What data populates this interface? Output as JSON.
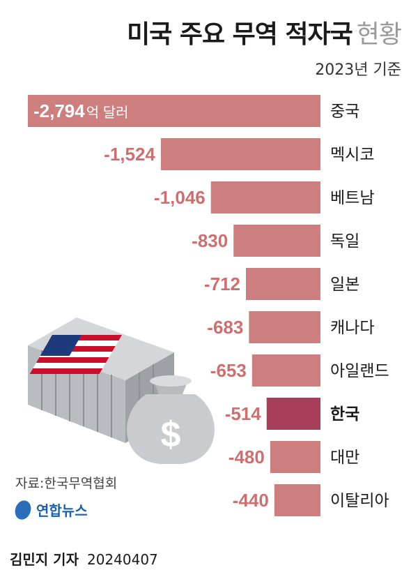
{
  "title": "미국 주요 무역 적자국",
  "title_light": "현황",
  "subtitle": "2023년 기준",
  "source": "자료:한국무역협회",
  "logo_text": "연합뉴스",
  "byline_name": "김민지 기자",
  "byline_date": "20240407",
  "colors": {
    "bar": "#cd7f7f",
    "highlight": "#a73e5c",
    "label": "#cd6f6f"
  },
  "chart_data": {
    "type": "bar",
    "orientation": "horizontal",
    "unit_label": "억 달러",
    "categories": [
      "중국",
      "멕시코",
      "베트남",
      "독일",
      "일본",
      "캐나다",
      "아일랜드",
      "한국",
      "대만",
      "이탈리아"
    ],
    "values": [
      -2794,
      -1524,
      -1046,
      -830,
      -712,
      -683,
      -653,
      -514,
      -480,
      -440
    ],
    "value_labels": [
      "-2,794",
      "-1,524",
      "-1,046",
      "-830",
      "-712",
      "-683",
      "-653",
      "-514",
      "-480",
      "-440"
    ],
    "highlight": "한국",
    "xlim": [
      -2794,
      0
    ]
  }
}
